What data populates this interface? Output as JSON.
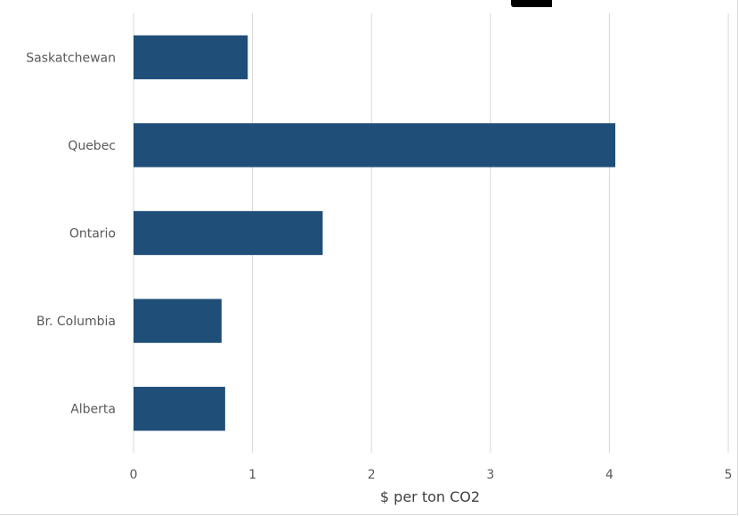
{
  "chart_data": {
    "type": "bar",
    "orientation": "horizontal",
    "title": "",
    "xlabel": "$ per ton CO2",
    "ylabel": "",
    "categories": [
      "Saskatchewan",
      "Quebec",
      "Ontario",
      "Br. Columbia",
      "Alberta"
    ],
    "values": [
      0.96,
      4.05,
      1.59,
      0.74,
      0.77
    ],
    "xlim": [
      0,
      5
    ],
    "xticks": [
      "0",
      "1",
      "2",
      "3",
      "4",
      "5"
    ],
    "grid": "vertical",
    "legend": "none",
    "bar_color": "#1f4e79"
  }
}
